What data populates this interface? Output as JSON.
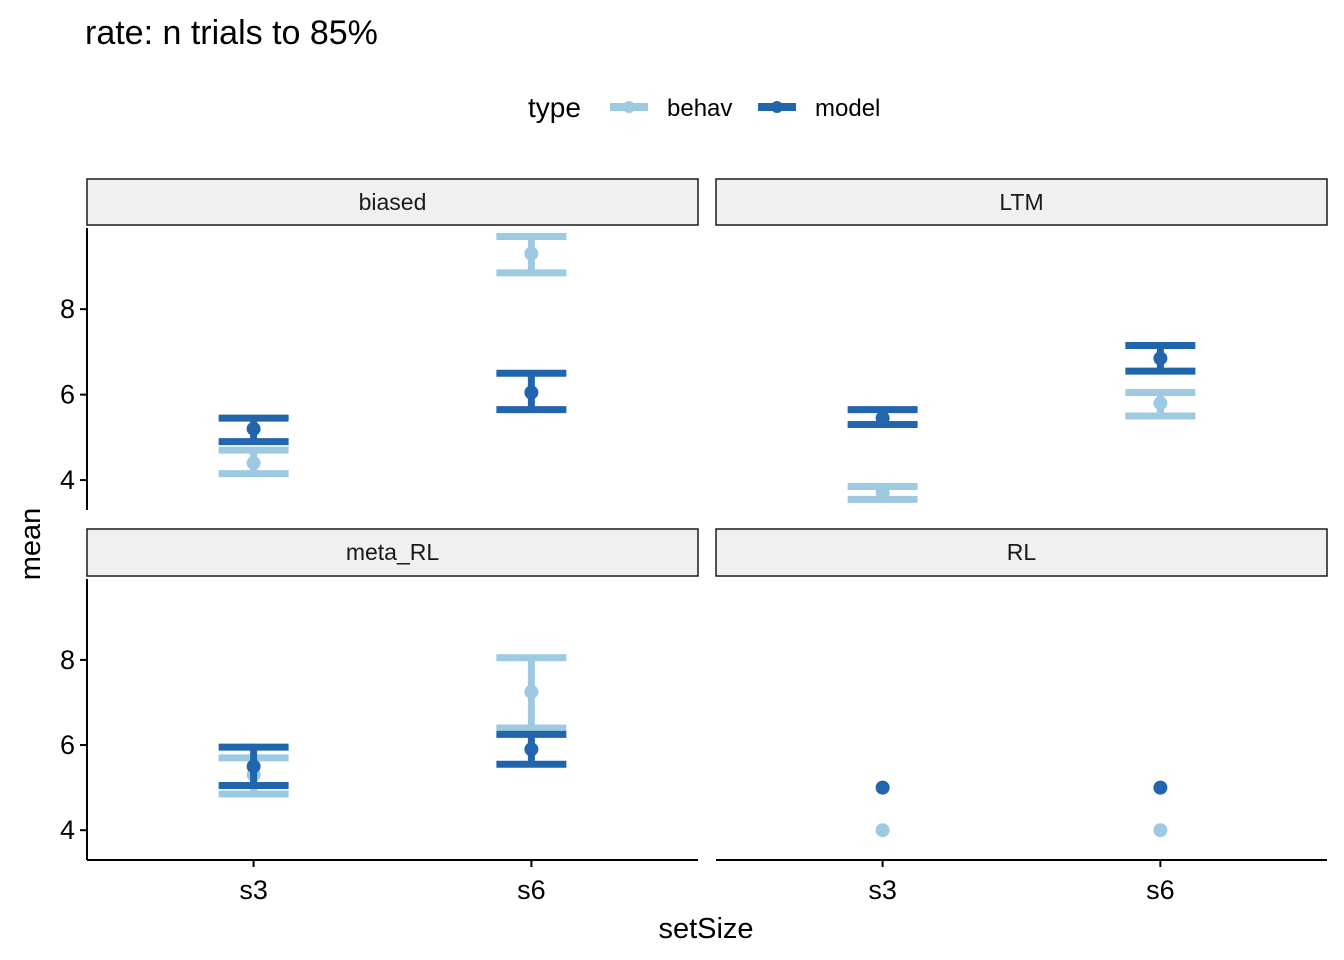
{
  "chart_data": {
    "type": "scatter",
    "title": "rate: n trials to 85%",
    "xlabel": "setSize",
    "ylabel": "mean",
    "legend": {
      "title": "type",
      "placement": "top",
      "entries": [
        {
          "name": "behav",
          "color": "#9ecae1"
        },
        {
          "name": "model",
          "color": "#2166ac"
        }
      ]
    },
    "categories": [
      "s3",
      "s6"
    ],
    "y_ticks": [
      4,
      6,
      8
    ],
    "ylim": [
      3.3,
      9.9
    ],
    "grid": false,
    "panels": [
      {
        "name": "biased",
        "series": [
          {
            "name": "behav",
            "points": [
              {
                "x": "s3",
                "mean": 4.4,
                "lo": 4.15,
                "hi": 4.7
              },
              {
                "x": "s6",
                "mean": 9.3,
                "lo": 8.85,
                "hi": 9.7
              }
            ]
          },
          {
            "name": "model",
            "points": [
              {
                "x": "s3",
                "mean": 5.2,
                "lo": 4.9,
                "hi": 5.45
              },
              {
                "x": "s6",
                "mean": 6.05,
                "lo": 5.65,
                "hi": 6.5
              }
            ]
          }
        ]
      },
      {
        "name": "LTM",
        "series": [
          {
            "name": "behav",
            "points": [
              {
                "x": "s3",
                "mean": 3.7,
                "lo": 3.55,
                "hi": 3.85
              },
              {
                "x": "s6",
                "mean": 5.8,
                "lo": 5.5,
                "hi": 6.05
              }
            ]
          },
          {
            "name": "model",
            "points": [
              {
                "x": "s3",
                "mean": 5.45,
                "lo": 5.3,
                "hi": 5.65
              },
              {
                "x": "s6",
                "mean": 6.85,
                "lo": 6.55,
                "hi": 7.15
              }
            ]
          }
        ]
      },
      {
        "name": "meta_RL",
        "series": [
          {
            "name": "behav",
            "points": [
              {
                "x": "s3",
                "mean": 5.3,
                "lo": 4.85,
                "hi": 5.7
              },
              {
                "x": "s6",
                "mean": 7.25,
                "lo": 6.4,
                "hi": 8.05
              }
            ]
          },
          {
            "name": "model",
            "points": [
              {
                "x": "s3",
                "mean": 5.5,
                "lo": 5.05,
                "hi": 5.95
              },
              {
                "x": "s6",
                "mean": 5.9,
                "lo": 5.55,
                "hi": 6.25
              }
            ]
          }
        ]
      },
      {
        "name": "RL",
        "series": [
          {
            "name": "behav",
            "points": [
              {
                "x": "s3",
                "mean": 4.0
              },
              {
                "x": "s6",
                "mean": 4.0
              }
            ]
          },
          {
            "name": "model",
            "points": [
              {
                "x": "s3",
                "mean": 5.0
              },
              {
                "x": "s6",
                "mean": 5.0
              }
            ]
          }
        ]
      }
    ]
  }
}
